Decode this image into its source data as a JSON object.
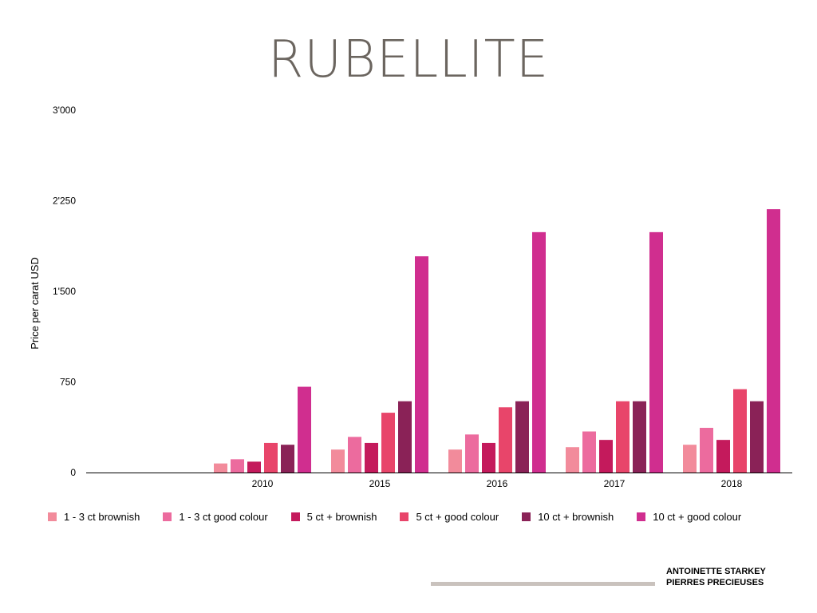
{
  "page": {
    "title": "RUBELLITE",
    "footer": {
      "line1": "ANTOINETTE STARKEY",
      "line2": "PIERRES PRECIEUSES"
    }
  },
  "chart_data": {
    "type": "bar",
    "title": "RUBELLITE",
    "xlabel": "",
    "ylabel": "Price per carat USD",
    "ylim": [
      0,
      3000
    ],
    "yticks": [
      0,
      750,
      1500,
      2250,
      3000
    ],
    "ytick_labels": [
      "0",
      "750",
      "1'500",
      "2'250",
      "3'000"
    ],
    "categories": [
      "2010",
      "2015",
      "2016",
      "2017",
      "2018"
    ],
    "legend_position": "bottom",
    "grid": false,
    "series": [
      {
        "name": "1 - 3 ct brownish",
        "color": "#f28b9b",
        "values": [
          75,
          190,
          190,
          210,
          230
        ]
      },
      {
        "name": "1 - 3 ct good colour",
        "color": "#ec6b9e",
        "values": [
          110,
          295,
          315,
          340,
          370
        ]
      },
      {
        "name": "5 ct + brownish",
        "color": "#c41a5c",
        "values": [
          90,
          245,
          245,
          270,
          270
        ]
      },
      {
        "name": "5 ct + good colour",
        "color": "#e8456a",
        "values": [
          245,
          495,
          540,
          590,
          690
        ]
      },
      {
        "name": "10 ct + brownish",
        "color": "#8a2257",
        "values": [
          230,
          590,
          590,
          590,
          590
        ]
      },
      {
        "name": "10 ct + good colour",
        "color": "#d02e8f",
        "values": [
          710,
          1790,
          1990,
          1990,
          2180
        ]
      }
    ]
  }
}
